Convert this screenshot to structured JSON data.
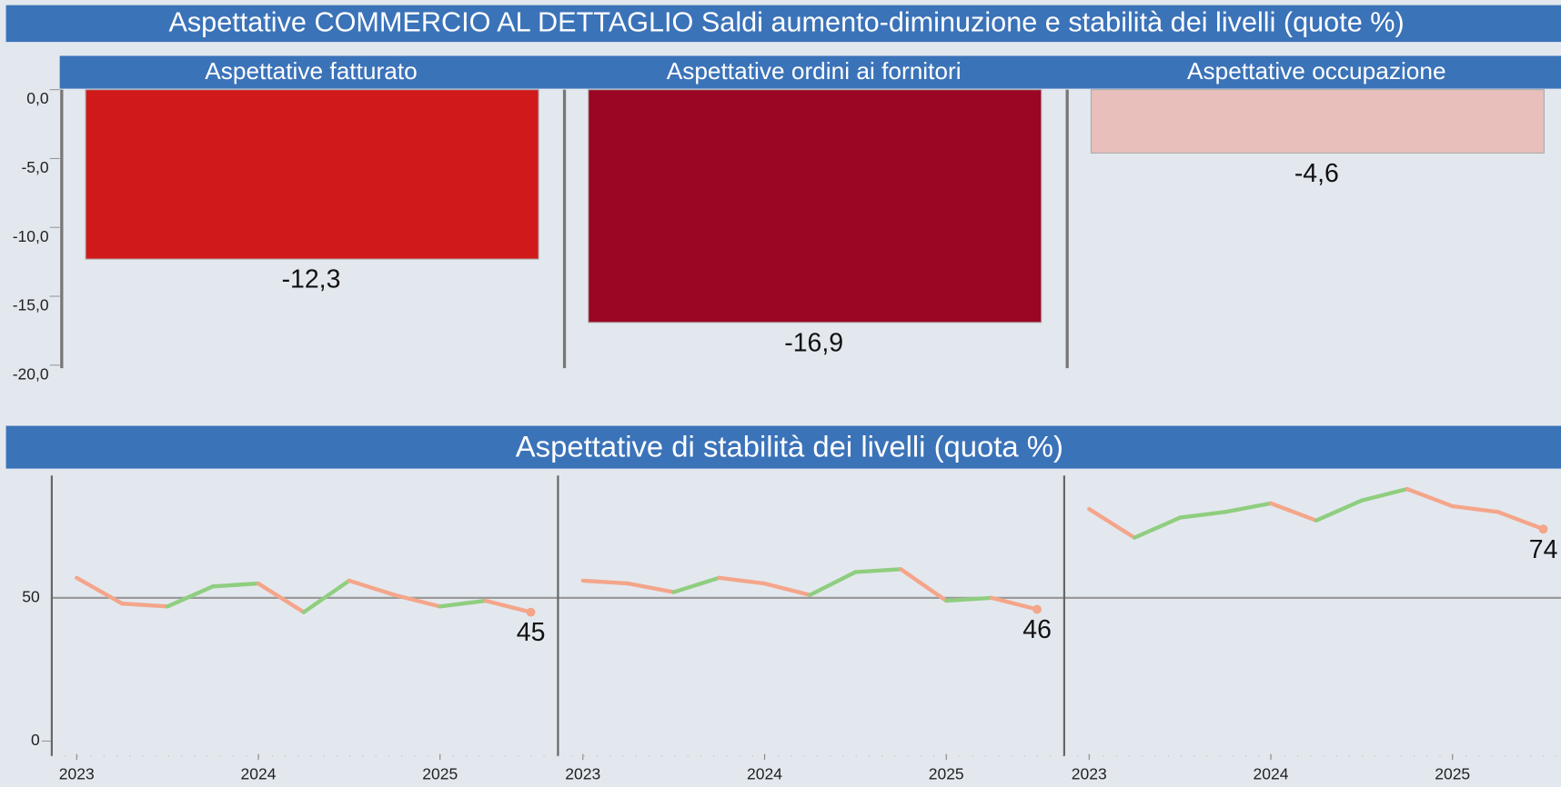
{
  "title": "Aspettative COMMERCIO AL DETTAGLIO Saldi aumento-diminuzione e stabilità dei livelli (quote %)",
  "chart_data": [
    {
      "type": "bar",
      "categories": [
        "Aspettative  fatturato",
        "Aspettative ordini ai fornitori",
        "Aspettative occupazione"
      ],
      "values": [
        -12.3,
        -16.9,
        -4.6
      ],
      "value_labels": [
        "-12,3",
        "-16,9",
        "-4,6"
      ],
      "colors": [
        "#d0191b",
        "#9a0623",
        "#e9bfbb"
      ],
      "ylim": [
        -20,
        0
      ],
      "yticks": [
        {
          "value": 0,
          "label": "0,0"
        },
        {
          "value": -5,
          "label": "-5,0"
        },
        {
          "value": -10,
          "label": "-10,0"
        },
        {
          "value": -15,
          "label": "-15,0"
        },
        {
          "value": -20,
          "label": "-20,0"
        }
      ]
    },
    {
      "type": "line",
      "title": "Aspettative di stabilità dei livelli (quota %)",
      "x": [
        2023,
        2023.25,
        2023.5,
        2023.75,
        2024,
        2024.25,
        2024.5,
        2024.75,
        2025,
        2025.25,
        2025.5
      ],
      "xticks": [
        2023,
        2024,
        2025
      ],
      "ylim": [
        0,
        92
      ],
      "yticks": [
        0,
        50
      ],
      "up_color": "#8fce7f",
      "down_color": "#f4a58a",
      "series": [
        {
          "values": [
            57,
            48,
            47,
            54,
            55,
            45,
            56,
            51,
            47,
            49,
            45
          ]
        },
        {
          "values": [
            56,
            55,
            52,
            57,
            55,
            51,
            59,
            60,
            49,
            50,
            46
          ]
        },
        {
          "values": [
            81,
            71,
            78,
            80,
            83,
            77,
            84,
            88,
            82,
            80,
            74
          ]
        }
      ]
    }
  ]
}
